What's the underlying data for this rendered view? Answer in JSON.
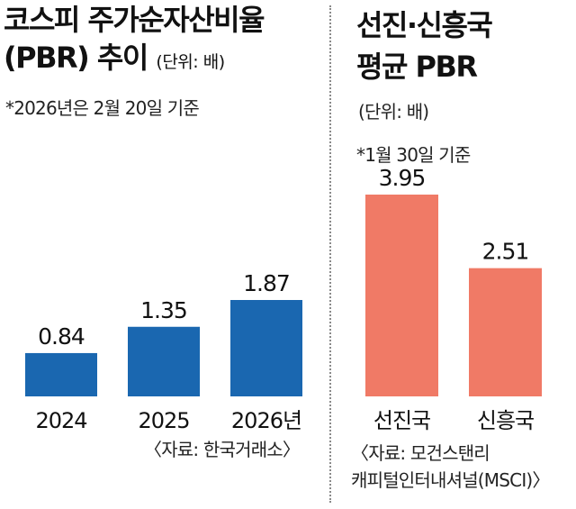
{
  "colors": {
    "left_bar": "#1a67b0",
    "right_bar": "#f07a66"
  },
  "left": {
    "title_line1": "코스피 주가순자산비율",
    "title_line2": "(PBR) 추이",
    "unit": "(단위: 배)",
    "note": "*2026년은 2월 20일 기준",
    "source": "〈자료: 한국거래소〉"
  },
  "right": {
    "title_line1": "선진·신흥국",
    "title_line2": "평균 PBR",
    "unit": "(단위: 배)",
    "note": "*1월 30일 기준",
    "source_line1": "〈자료: 모건스탠리",
    "source_line2": "캐피털인터내셔널(MSCI)〉"
  },
  "chart_data": [
    {
      "type": "bar",
      "title": "코스피 주가순자산비율 (PBR) 추이",
      "ylabel": "배",
      "categories": [
        "2024",
        "2025",
        "2026년"
      ],
      "values": [
        0.84,
        1.35,
        1.87
      ],
      "value_labels": [
        "0.84",
        "1.35",
        "1.87"
      ],
      "ylim": [
        0,
        1.87
      ]
    },
    {
      "type": "bar",
      "title": "선진·신흥국 평균 PBR",
      "ylabel": "배",
      "categories": [
        "선진국",
        "신흥국"
      ],
      "values": [
        3.95,
        2.51
      ],
      "value_labels": [
        "3.95",
        "2.51"
      ],
      "ylim": [
        0,
        3.95
      ]
    }
  ]
}
